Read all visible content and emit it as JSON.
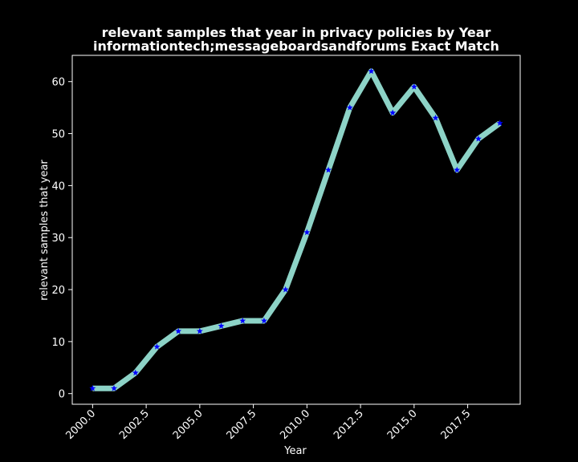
{
  "chart_data": {
    "type": "line",
    "title": "relevant samples that year in privacy policies by Year",
    "subtitle": "informationtech;messageboardsandforums Exact Match",
    "xlabel": "Year",
    "ylabel": "relevant samples that year",
    "x": [
      2000,
      2001,
      2002,
      2003,
      2004,
      2005,
      2006,
      2007,
      2008,
      2009,
      2010,
      2011,
      2012,
      2013,
      2014,
      2015,
      2016,
      2017,
      2018,
      2019
    ],
    "series": [
      {
        "values": [
          1,
          1,
          4,
          9,
          12,
          12,
          13,
          14,
          14,
          20,
          31,
          43,
          55,
          62,
          54,
          59,
          53,
          43,
          49,
          52
        ]
      }
    ],
    "xlim": [
      1999.05,
      2019.95
    ],
    "ylim": [
      -2.05,
      65.05
    ],
    "xticks": [
      2000.0,
      2002.5,
      2005.0,
      2007.5,
      2010.0,
      2012.5,
      2015.0,
      2017.5
    ],
    "xtick_labels": [
      "2000.0",
      "2002.5",
      "2005.0",
      "2007.5",
      "2010.0",
      "2012.5",
      "2015.0",
      "2017.5"
    ],
    "yticks": [
      0,
      10,
      20,
      30,
      40,
      50,
      60
    ],
    "ytick_labels": [
      "0",
      "10",
      "20",
      "30",
      "40",
      "50",
      "60"
    ],
    "grid": false,
    "legend": "none",
    "line_color": "#8dd3c7",
    "marker": "star",
    "marker_color": "#0000ff",
    "background": "#000000",
    "foreground": "#ffffff"
  }
}
